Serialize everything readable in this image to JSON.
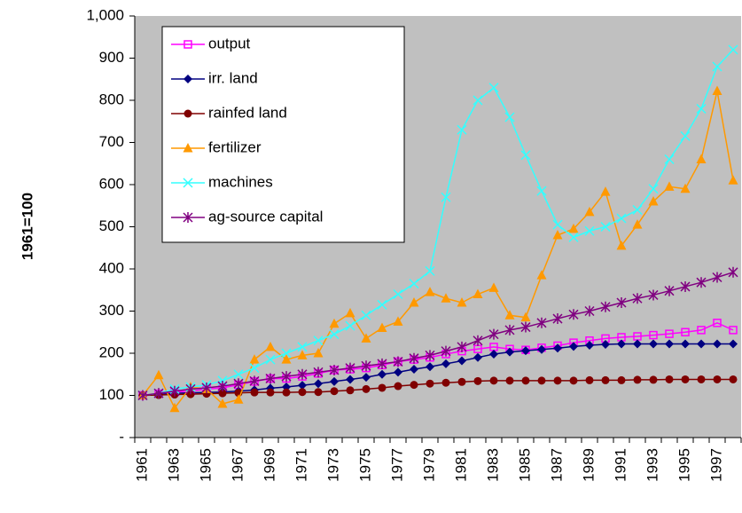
{
  "chart_data": {
    "type": "line",
    "y_label": "1961=100",
    "categories": [
      "1961",
      null,
      "1963",
      null,
      "1965",
      null,
      "1967",
      null,
      "1969",
      null,
      "1971",
      null,
      "1973",
      null,
      "1975",
      null,
      "1977",
      null,
      "1979",
      null,
      "1981",
      null,
      "1983",
      null,
      "1985",
      null,
      "1987",
      null,
      "1989",
      null,
      "1991",
      null,
      "1993",
      null,
      "1995",
      null,
      "1997",
      null
    ],
    "ylim": [
      0,
      1000
    ],
    "yticks": [
      {
        "value": 0,
        "label": "-"
      },
      100,
      200,
      300,
      400,
      500,
      600,
      700,
      800,
      900,
      {
        "value": 1000,
        "label": "1,000"
      }
    ],
    "plot_background": "#c0c0c0",
    "series": [
      {
        "name": "output",
        "color": "#ff00ff",
        "marker": "square",
        "values": [
          100,
          104,
          108,
          110,
          115,
          118,
          125,
          133,
          140,
          140,
          145,
          152,
          160,
          162,
          165,
          172,
          180,
          185,
          190,
          198,
          205,
          210,
          215,
          210,
          208,
          213,
          218,
          225,
          230,
          235,
          238,
          240,
          243,
          246,
          250,
          255,
          272,
          255
        ]
      },
      {
        "name": "irr. land",
        "color": "#000080",
        "marker": "diamond",
        "values": [
          100,
          102,
          105,
          106,
          107,
          108,
          110,
          113,
          117,
          120,
          124,
          128,
          133,
          138,
          143,
          150,
          155,
          162,
          168,
          175,
          182,
          190,
          198,
          203,
          206,
          209,
          212,
          216,
          219,
          221,
          222,
          222,
          222,
          222,
          222,
          222,
          222,
          222
        ]
      },
      {
        "name": "rainfed land",
        "color": "#800000",
        "marker": "circle",
        "values": [
          100,
          101,
          102,
          103,
          104,
          105,
          106,
          107,
          107,
          107,
          108,
          108,
          110,
          112,
          115,
          118,
          122,
          125,
          128,
          130,
          132,
          134,
          135,
          135,
          135,
          135,
          135,
          135,
          136,
          136,
          136,
          137,
          137,
          138,
          138,
          138,
          138,
          138
        ]
      },
      {
        "name": "fertilizer",
        "color": "#ff9900",
        "marker": "triangle",
        "values": [
          100,
          148,
          70,
          120,
          115,
          80,
          90,
          185,
          215,
          185,
          195,
          200,
          270,
          295,
          235,
          260,
          275,
          320,
          345,
          330,
          320,
          340,
          355,
          290,
          285,
          385,
          480,
          495,
          535,
          583,
          455,
          505,
          560,
          595,
          590,
          660,
          822,
          610
        ]
      },
      {
        "name": "machines",
        "color": "#33ffff",
        "marker": "cross",
        "values": [
          100,
          105,
          115,
          120,
          125,
          135,
          150,
          165,
          185,
          200,
          215,
          230,
          245,
          265,
          290,
          315,
          340,
          365,
          395,
          570,
          730,
          800,
          830,
          760,
          670,
          585,
          505,
          475,
          490,
          500,
          520,
          540,
          590,
          660,
          715,
          780,
          880,
          920
        ]
      },
      {
        "name": "ag-source capital",
        "color": "#800080",
        "marker": "star",
        "values": [
          100,
          105,
          110,
          115,
          118,
          122,
          128,
          134,
          140,
          145,
          150,
          155,
          160,
          165,
          170,
          175,
          180,
          188,
          195,
          205,
          215,
          230,
          245,
          255,
          262,
          272,
          282,
          292,
          300,
          310,
          320,
          330,
          338,
          348,
          358,
          368,
          380,
          392
        ]
      }
    ]
  }
}
